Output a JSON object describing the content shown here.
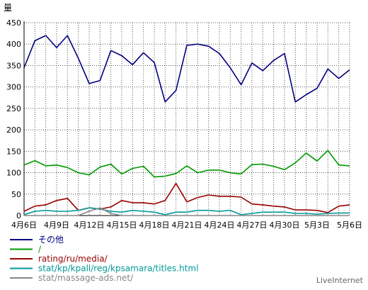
{
  "credit": "LiveInternet",
  "chart_data": {
    "type": "line",
    "ylabel": "量",
    "ylim": [
      0,
      450
    ],
    "yticks": [
      0,
      50,
      100,
      150,
      200,
      250,
      300,
      350,
      400,
      450
    ],
    "grid": true,
    "legend_placement": "bottom-left",
    "x": [
      "4月6日",
      "4月7日",
      "4月8日",
      "4月9日",
      "4月10日",
      "4月11日",
      "4月12日",
      "4月13日",
      "4月14日",
      "4月15日",
      "4月16日",
      "4月17日",
      "4月18日",
      "4月19日",
      "4月20日",
      "4月21日",
      "4月22日",
      "4月23日",
      "4月24日",
      "4月25日",
      "4月26日",
      "4月27日",
      "4月28日",
      "4月29日",
      "4月30日",
      "5月1日",
      "5月2日",
      "5月3日",
      "5月4日",
      "5月5日",
      "5月6日"
    ],
    "xtick_labels": [
      {
        "index": 0,
        "label": "4月6日"
      },
      {
        "index": 3,
        "label": "4月9日"
      },
      {
        "index": 6,
        "label": "4月12日"
      },
      {
        "index": 9,
        "label": "4月15日"
      },
      {
        "index": 12,
        "label": "4月18日"
      },
      {
        "index": 15,
        "label": "4月21日"
      },
      {
        "index": 18,
        "label": "4月24日"
      },
      {
        "index": 21,
        "label": "4月27日"
      },
      {
        "index": 24,
        "label": "4月30日"
      },
      {
        "index": 27,
        "label": "5月3日"
      },
      {
        "index": 30,
        "label": "5月6日"
      }
    ],
    "series": [
      {
        "name": "その他",
        "color": "#000080",
        "values": [
          345,
          408,
          420,
          392,
          420,
          367,
          308,
          315,
          385,
          373,
          352,
          380,
          357,
          265,
          292,
          397,
          400,
          395,
          378,
          345,
          305,
          356,
          338,
          362,
          378,
          265,
          282,
          297,
          342,
          320,
          340
        ]
      },
      {
        "name": "/",
        "color": "#009900",
        "values": [
          118,
          128,
          116,
          118,
          112,
          100,
          95,
          113,
          120,
          97,
          110,
          115,
          90,
          92,
          98,
          116,
          100,
          106,
          106,
          100,
          97,
          119,
          120,
          115,
          107,
          123,
          146,
          127,
          152,
          118,
          116
        ]
      },
      {
        "name": "rating/ru/media/",
        "color": "#990000",
        "values": [
          10,
          22,
          25,
          35,
          40,
          12,
          18,
          15,
          20,
          35,
          30,
          30,
          27,
          35,
          75,
          32,
          42,
          48,
          45,
          45,
          43,
          27,
          25,
          22,
          20,
          13,
          13,
          12,
          7,
          22,
          25
        ]
      },
      {
        "name": "stat/kp/kpall/reg/kpsamara/titles.html",
        "color": "#009999",
        "values": [
          2,
          10,
          12,
          10,
          10,
          12,
          18,
          15,
          10,
          8,
          12,
          10,
          8,
          2,
          8,
          8,
          12,
          12,
          10,
          12,
          2,
          5,
          8,
          8,
          8,
          5,
          5,
          3,
          5,
          6,
          6
        ]
      },
      {
        "name": "stat/massage-ads.net/",
        "color": "#888888",
        "values": [
          0,
          0,
          0,
          0,
          0,
          0,
          10,
          18,
          5,
          0,
          0,
          0,
          0,
          0,
          0,
          0,
          0,
          0,
          0,
          0,
          0,
          0,
          0,
          0,
          0,
          0,
          0,
          0,
          0,
          0,
          0
        ]
      }
    ]
  }
}
